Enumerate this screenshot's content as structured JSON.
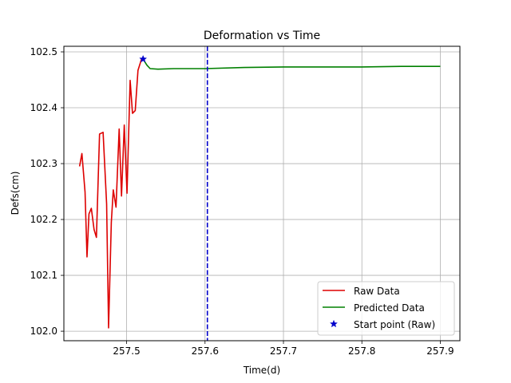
{
  "chart_data": {
    "type": "line",
    "title": "Deformation vs Time",
    "xlabel": "Time(d)",
    "ylabel": "Defs(cm)",
    "xlim": [
      257.42,
      257.925
    ],
    "ylim": [
      101.983,
      102.51
    ],
    "xticks": [
      257.5,
      257.6,
      257.7,
      257.8,
      257.9
    ],
    "xtick_labels": [
      "257.5",
      "257.6",
      "257.7",
      "257.8",
      "257.9"
    ],
    "yticks": [
      102.0,
      102.1,
      102.2,
      102.3,
      102.4,
      102.5
    ],
    "ytick_labels": [
      "102.0",
      "102.1",
      "102.2",
      "102.3",
      "102.4",
      "102.5"
    ],
    "grid": true,
    "legend_position": "lower-right",
    "colors": {
      "raw": "#dd0000",
      "predicted": "#008000",
      "start": "#0000cc",
      "vline": "#0000cc"
    },
    "series": [
      {
        "name": "Raw Data",
        "style": "line",
        "color": "#dd0000",
        "x": [
          257.44,
          257.443,
          257.447,
          257.4495,
          257.452,
          257.455,
          257.4585,
          257.4615,
          257.4655,
          257.47,
          257.4745,
          257.477,
          257.4805,
          257.483,
          257.4865,
          257.4905,
          257.4935,
          257.497,
          257.5005,
          257.5045,
          257.5075,
          257.511,
          257.5145,
          257.519,
          257.521
        ],
        "y": [
          102.295,
          102.318,
          102.249,
          102.133,
          102.21,
          102.22,
          102.182,
          102.168,
          102.353,
          102.356,
          102.228,
          102.006,
          102.195,
          102.253,
          102.222,
          102.362,
          102.242,
          102.369,
          102.247,
          102.449,
          102.39,
          102.395,
          102.467,
          102.487,
          102.487
        ]
      },
      {
        "name": "Predicted Data",
        "style": "line",
        "color": "#008000",
        "x": [
          257.521,
          257.526,
          257.53,
          257.54,
          257.56,
          257.6,
          257.65,
          257.7,
          257.75,
          257.8,
          257.85,
          257.9
        ],
        "y": [
          102.487,
          102.476,
          102.47,
          102.469,
          102.47,
          102.47,
          102.472,
          102.473,
          102.473,
          102.473,
          102.474,
          102.474
        ]
      },
      {
        "name": "Start point (Raw)",
        "style": "marker",
        "color": "#0000cc",
        "x": [
          257.521
        ],
        "y": [
          102.487
        ]
      }
    ],
    "vline": {
      "x": 257.603,
      "style": "dashed",
      "color": "#0000cc"
    }
  }
}
